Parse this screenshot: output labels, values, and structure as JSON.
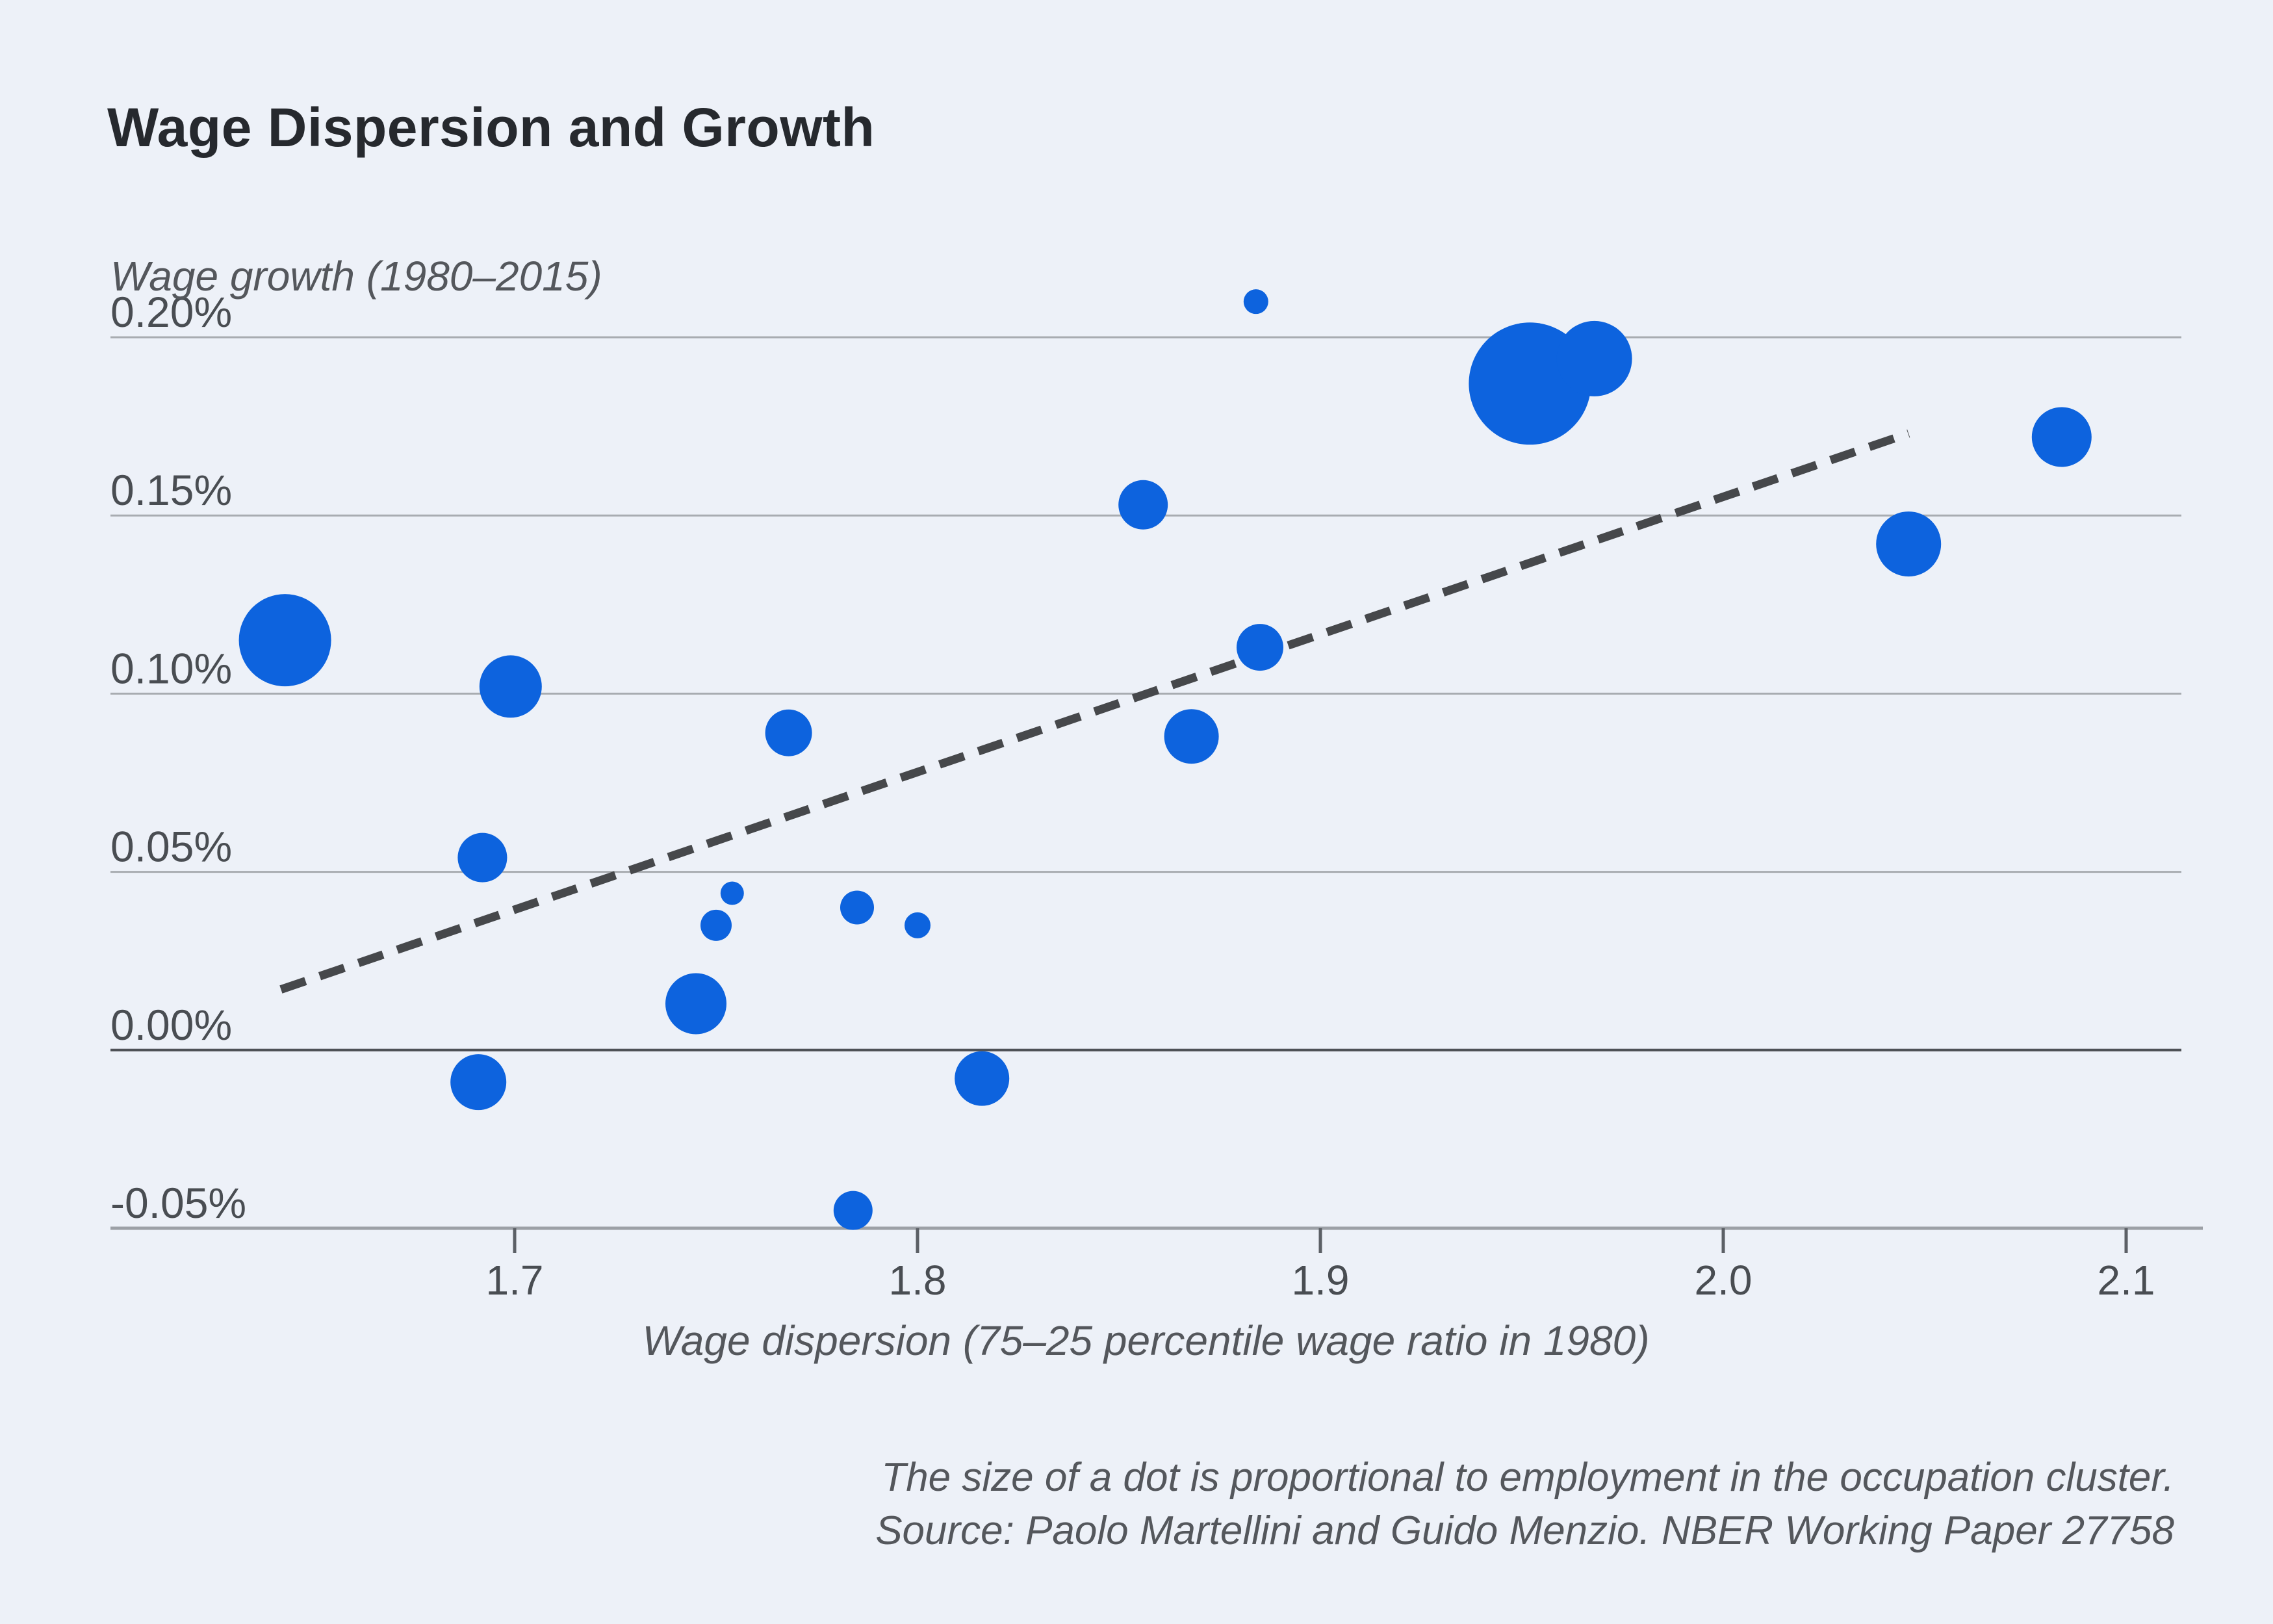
{
  "page": {
    "background_color": "#edf1f8"
  },
  "chart_data": {
    "type": "scatter",
    "title": "Wage Dispersion and Growth",
    "y_axis_label": "Wage growth (1980–2015)",
    "x_axis_label": "Wage dispersion (75–25 percentile wage ratio in 1980)",
    "note_line1": "The size of a dot is proportional to employment in the occupation cluster.",
    "note_line2": "Source: Paolo Martellini and Guido Menzio. NBER Working Paper 27758",
    "legend": false,
    "grid": true,
    "xlim": [
      1.6,
      2.12
    ],
    "ylim": [
      -0.055,
      0.215
    ],
    "x_ticks": [
      {
        "value": 1.7,
        "label": "1.7"
      },
      {
        "value": 1.8,
        "label": "1.8"
      },
      {
        "value": 1.9,
        "label": "1.9"
      },
      {
        "value": 2.0,
        "label": "2.0"
      },
      {
        "value": 2.1,
        "label": "2.1"
      }
    ],
    "y_ticks": [
      {
        "value": 0.2,
        "label": "0.20%"
      },
      {
        "value": 0.15,
        "label": "0.15%"
      },
      {
        "value": 0.1,
        "label": "0.10%"
      },
      {
        "value": 0.05,
        "label": "0.05%"
      },
      {
        "value": 0.0,
        "label": "0.00%"
      },
      {
        "value": -0.05,
        "label": "-0.05%"
      }
    ],
    "point_color": "#0d63de",
    "points": [
      {
        "x": 1.643,
        "y": 0.115,
        "size": 71
      },
      {
        "x": 1.699,
        "y": 0.102,
        "size": 48
      },
      {
        "x": 1.692,
        "y": 0.054,
        "size": 38
      },
      {
        "x": 1.691,
        "y": -0.009,
        "size": 43
      },
      {
        "x": 1.768,
        "y": 0.089,
        "size": 36
      },
      {
        "x": 1.754,
        "y": 0.044,
        "size": 18
      },
      {
        "x": 1.75,
        "y": 0.035,
        "size": 24
      },
      {
        "x": 1.745,
        "y": 0.013,
        "size": 47
      },
      {
        "x": 1.785,
        "y": 0.04,
        "size": 26
      },
      {
        "x": 1.8,
        "y": 0.035,
        "size": 20
      },
      {
        "x": 1.816,
        "y": -0.008,
        "size": 42
      },
      {
        "x": 1.784,
        "y": -0.045,
        "size": 30
      },
      {
        "x": 1.856,
        "y": 0.153,
        "size": 38
      },
      {
        "x": 1.868,
        "y": 0.088,
        "size": 42
      },
      {
        "x": 1.884,
        "y": 0.21,
        "size": 19
      },
      {
        "x": 1.885,
        "y": 0.113,
        "size": 36
      },
      {
        "x": 1.952,
        "y": 0.187,
        "size": 94
      },
      {
        "x": 1.968,
        "y": 0.194,
        "size": 58
      },
      {
        "x": 2.046,
        "y": 0.142,
        "size": 50
      },
      {
        "x": 2.084,
        "y": 0.172,
        "size": 46
      }
    ],
    "trend_line": {
      "style": "dashed",
      "color": "#46484b",
      "x1": 1.642,
      "y1": 0.017,
      "x2": 2.046,
      "y2": 0.173
    },
    "colors": {
      "gridline": "#a8acb1",
      "zero_line": "#4e5156",
      "bottom_axis": "#9ca0a6",
      "tick_mark": "#5c6066",
      "tick_label": "#494d52",
      "title_text": "#26292e",
      "secondary_text": "#54575c"
    }
  }
}
